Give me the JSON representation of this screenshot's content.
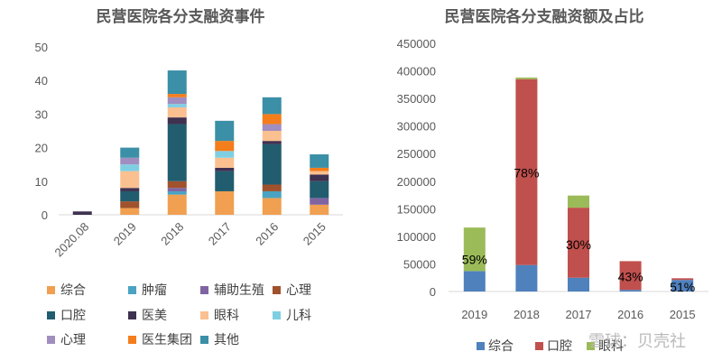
{
  "chart_data": [
    {
      "type": "bar",
      "stacked": true,
      "title": "民营医院各分支融资事件",
      "categories": [
        "2020.08",
        "2019",
        "2018",
        "2017",
        "2016",
        "2015"
      ],
      "ylim": [
        0,
        50
      ],
      "yticks": [
        0,
        10,
        20,
        30,
        40,
        50
      ],
      "grid": false,
      "legend_position": "bottom",
      "series": [
        {
          "name": "综合",
          "color": "#f0a050",
          "values": [
            0,
            2,
            6,
            7,
            5,
            3
          ]
        },
        {
          "name": "肿瘤",
          "color": "#4aa3c2",
          "values": [
            0,
            0,
            1,
            0,
            2,
            0
          ]
        },
        {
          "name": "辅助生殖",
          "color": "#8064a2",
          "values": [
            0,
            0,
            1,
            0,
            0,
            2
          ]
        },
        {
          "name": "心理",
          "color": "#a0522d",
          "values": [
            0,
            2,
            2,
            0,
            2,
            0
          ]
        },
        {
          "name": "口腔",
          "color": "#215d6e",
          "values": [
            0,
            3,
            17,
            6,
            12,
            5
          ]
        },
        {
          "name": "医美",
          "color": "#3f3150",
          "values": [
            1,
            1,
            2,
            1,
            1,
            2
          ]
        },
        {
          "name": "眼科",
          "color": "#fac090",
          "values": [
            0,
            5,
            3,
            3,
            3,
            1
          ]
        },
        {
          "name": "儿科",
          "color": "#7fcfe3",
          "values": [
            0,
            2,
            1,
            2,
            0,
            0
          ]
        },
        {
          "name": "心理",
          "color": "#a08ec0",
          "values": [
            0,
            2,
            2,
            0,
            2,
            0
          ]
        },
        {
          "name": "医生集团",
          "color": "#f47d1c",
          "values": [
            0,
            0,
            1,
            3,
            3,
            1
          ]
        },
        {
          "name": "其他",
          "color": "#3b8fa6",
          "values": [
            0,
            3,
            7,
            6,
            5,
            4
          ]
        }
      ]
    },
    {
      "type": "bar",
      "stacked": true,
      "title": "民营医院各分支融资额及占比",
      "categories": [
        "2019",
        "2018",
        "2017",
        "2016",
        "2015"
      ],
      "ylim": [
        0,
        450000
      ],
      "yticks": [
        0,
        50000,
        100000,
        150000,
        200000,
        250000,
        300000,
        350000,
        400000,
        450000
      ],
      "grid": false,
      "legend_position": "bottom",
      "series": [
        {
          "name": "综合",
          "color": "#4f81bd",
          "values": [
            37000,
            48000,
            25000,
            3000,
            21000
          ]
        },
        {
          "name": "口腔",
          "color": "#c0504d",
          "values": [
            0,
            337000,
            127000,
            52000,
            3000
          ]
        },
        {
          "name": "眼科",
          "color": "#9bbb59",
          "values": [
            79000,
            3000,
            22000,
            0,
            0
          ]
        }
      ],
      "annotations": [
        {
          "category": "2019",
          "text": "59%",
          "at_value": 58000
        },
        {
          "category": "2018",
          "text": "78%",
          "at_value": 215000
        },
        {
          "category": "2017",
          "text": "30%",
          "at_value": 85000
        },
        {
          "category": "2016",
          "text": "43%",
          "at_value": 27000
        },
        {
          "category": "2015",
          "text": "51%",
          "at_value": 8000
        }
      ]
    }
  ],
  "watermark": "雪球：贝壳社"
}
